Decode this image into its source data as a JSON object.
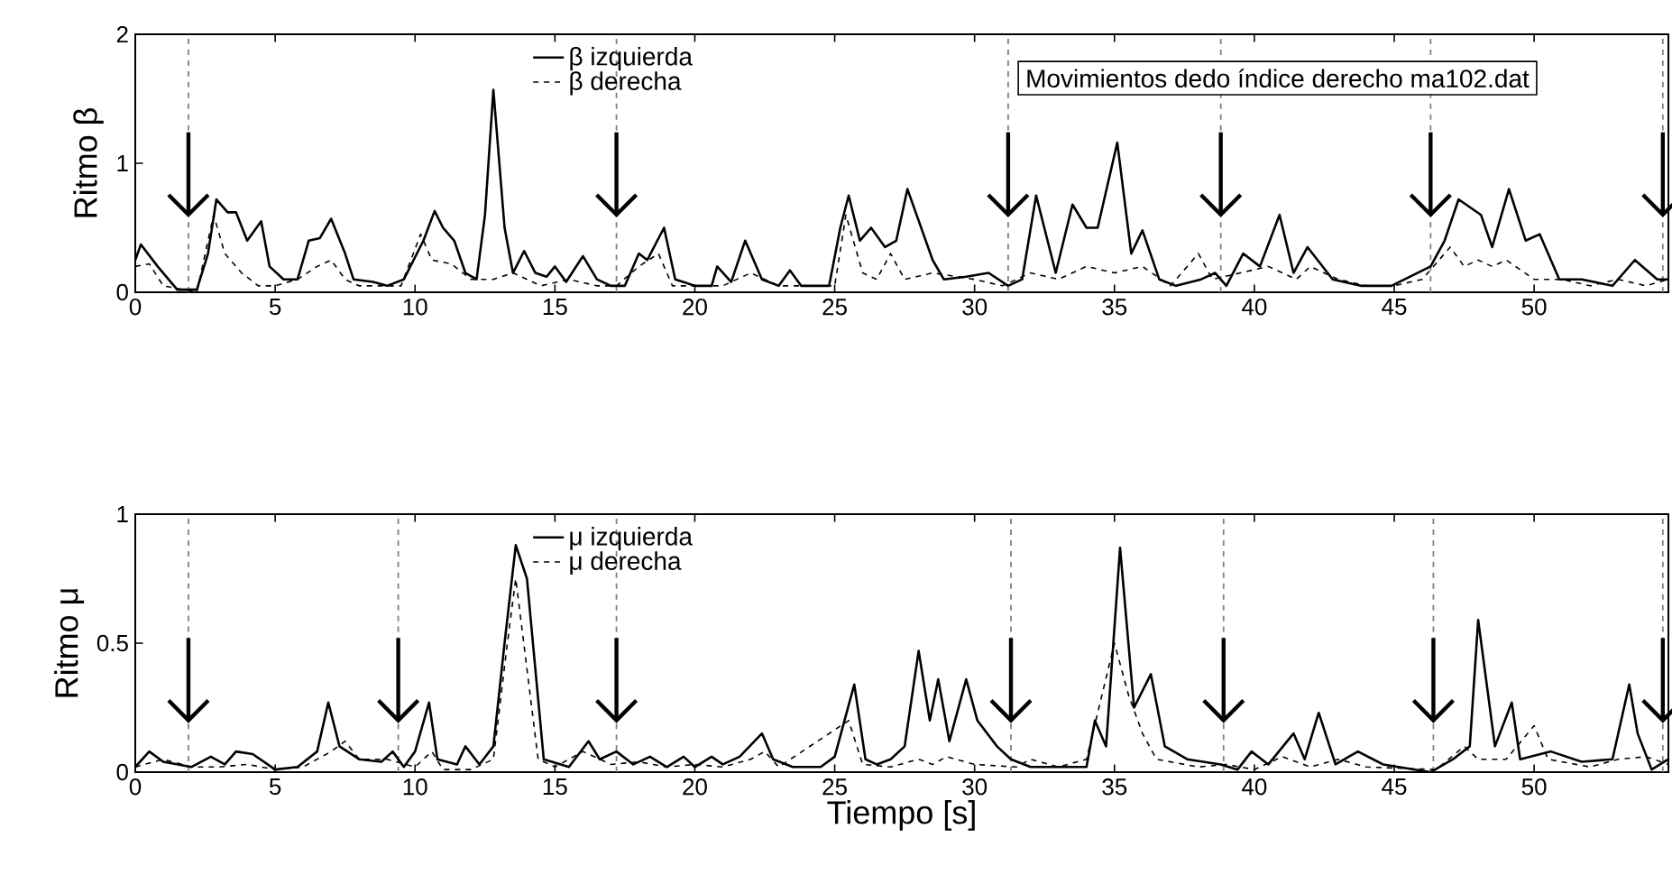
{
  "chart_data": [
    {
      "type": "line",
      "ylabel": "Ritmo β",
      "xlim": [
        0,
        54.8
      ],
      "ylim": [
        0,
        2
      ],
      "xticks": [
        0,
        5,
        10,
        15,
        20,
        25,
        30,
        35,
        40,
        45,
        50
      ],
      "yticks": [
        0,
        1,
        2
      ],
      "legend": "top",
      "annotations": [
        "Movimientos dedo índice derecho ma102.dat"
      ],
      "ref_lines": [
        {
          "axis": "x",
          "value": 1.9,
          "color": "#808080",
          "line_style": "dashed"
        },
        {
          "axis": "x",
          "value": 17.2,
          "color": "#808080",
          "line_style": "dashed"
        },
        {
          "axis": "x",
          "value": 31.2,
          "color": "#808080",
          "line_style": "dashed"
        },
        {
          "axis": "x",
          "value": 38.8,
          "color": "#808080",
          "line_style": "dashed"
        },
        {
          "axis": "x",
          "value": 46.3,
          "color": "#808080",
          "line_style": "dashed"
        },
        {
          "axis": "x",
          "value": 54.6,
          "color": "#808080",
          "line_style": "dashed"
        }
      ],
      "series": [
        {
          "name": "β izquierda",
          "color": "#000000",
          "line_style": "solid",
          "x": [
            0,
            0.2,
            0.8,
            1.5,
            2.2,
            2.6,
            2.9,
            3.3,
            3.6,
            4.0,
            4.5,
            4.8,
            5.3,
            5.8,
            6.2,
            6.6,
            7.0,
            7.5,
            7.8,
            8.5,
            9.0,
            9.6,
            10.3,
            10.7,
            11.0,
            11.4,
            11.8,
            12.2,
            12.5,
            12.8,
            13.2,
            13.5,
            13.9,
            14.3,
            14.7,
            15.0,
            15.4,
            16.0,
            16.5,
            17.0,
            17.5,
            18.0,
            18.3,
            18.9,
            19.3,
            20.0,
            20.6,
            20.8,
            21.3,
            21.8,
            22.4,
            23.0,
            23.4,
            23.8,
            24.8,
            25.2,
            25.5,
            25.9,
            26.3,
            26.8,
            27.2,
            27.6,
            28.5,
            28.9,
            29.7,
            30.5,
            31.2,
            31.7,
            32.2,
            32.9,
            33.5,
            34.0,
            34.4,
            35.1,
            35.6,
            36.0,
            36.6,
            37.2,
            38.1,
            38.6,
            39.0,
            39.6,
            40.2,
            40.9,
            41.4,
            41.9,
            42.8,
            43.8,
            44.9,
            46.3,
            46.8,
            47.3,
            48.1,
            48.5,
            49.1,
            49.7,
            50.2,
            50.9,
            51.7,
            52.8,
            53.6,
            54.4,
            54.8
          ],
          "values": [
            0.25,
            0.37,
            0.2,
            0.02,
            0.02,
            0.3,
            0.72,
            0.62,
            0.62,
            0.4,
            0.55,
            0.2,
            0.1,
            0.1,
            0.4,
            0.42,
            0.57,
            0.3,
            0.1,
            0.08,
            0.05,
            0.1,
            0.4,
            0.63,
            0.5,
            0.4,
            0.15,
            0.1,
            0.6,
            1.57,
            0.5,
            0.15,
            0.32,
            0.15,
            0.12,
            0.2,
            0.08,
            0.28,
            0.1,
            0.05,
            0.05,
            0.3,
            0.25,
            0.5,
            0.1,
            0.05,
            0.05,
            0.2,
            0.08,
            0.4,
            0.1,
            0.05,
            0.17,
            0.05,
            0.05,
            0.5,
            0.75,
            0.4,
            0.5,
            0.35,
            0.4,
            0.8,
            0.25,
            0.1,
            0.12,
            0.15,
            0.05,
            0.1,
            0.75,
            0.15,
            0.68,
            0.5,
            0.5,
            1.16,
            0.3,
            0.48,
            0.1,
            0.05,
            0.1,
            0.15,
            0.05,
            0.3,
            0.2,
            0.6,
            0.15,
            0.35,
            0.1,
            0.05,
            0.05,
            0.2,
            0.4,
            0.72,
            0.6,
            0.35,
            0.8,
            0.4,
            0.45,
            0.1,
            0.1,
            0.05,
            0.25,
            0.1,
            0.1
          ]
        },
        {
          "name": "β derecha",
          "color": "#000000",
          "line_style": "dashed",
          "x": [
            0,
            0.5,
            1.0,
            2.2,
            2.8,
            3.2,
            3.8,
            4.4,
            5.0,
            5.8,
            6.5,
            7.0,
            7.5,
            8.0,
            9.5,
            10.2,
            10.6,
            11.3,
            12.0,
            12.8,
            13.5,
            14.5,
            15.5,
            16.5,
            17.2,
            18.0,
            18.7,
            19.2,
            21.0,
            22.0,
            23.0,
            25.0,
            25.4,
            26.0,
            26.5,
            27.0,
            27.5,
            28.5,
            30.0,
            31.0,
            32.0,
            33.0,
            34.0,
            35.0,
            36.0,
            37.0,
            38.0,
            38.5,
            39.5,
            40.5,
            41.5,
            42.0,
            43.0,
            44.0,
            45.0,
            46.0,
            47.0,
            47.5,
            48.0,
            48.5,
            49.0,
            50.0,
            51.0,
            52.0,
            53.0,
            54.0,
            54.8
          ],
          "values": [
            0.2,
            0.22,
            0.05,
            0.0,
            0.6,
            0.3,
            0.15,
            0.05,
            0.05,
            0.1,
            0.2,
            0.25,
            0.1,
            0.05,
            0.05,
            0.45,
            0.25,
            0.22,
            0.1,
            0.1,
            0.15,
            0.05,
            0.1,
            0.05,
            0.05,
            0.2,
            0.3,
            0.05,
            0.05,
            0.15,
            0.05,
            0.05,
            0.6,
            0.15,
            0.1,
            0.3,
            0.1,
            0.15,
            0.1,
            0.05,
            0.15,
            0.1,
            0.2,
            0.15,
            0.2,
            0.05,
            0.3,
            0.1,
            0.15,
            0.2,
            0.1,
            0.2,
            0.1,
            0.05,
            0.05,
            0.1,
            0.35,
            0.2,
            0.25,
            0.2,
            0.25,
            0.1,
            0.1,
            0.05,
            0.1,
            0.05,
            0.1
          ]
        }
      ]
    },
    {
      "type": "line",
      "ylabel": "Ritmo μ",
      "xlabel": "Tiempo [s]",
      "xlim": [
        0,
        54.8
      ],
      "ylim": [
        0,
        1
      ],
      "xticks": [
        0,
        5,
        10,
        15,
        20,
        25,
        30,
        35,
        40,
        45,
        50
      ],
      "yticks": [
        0,
        0.5,
        1
      ],
      "legend": "top",
      "ref_lines": [
        {
          "axis": "x",
          "value": 1.9,
          "color": "#808080",
          "line_style": "dashed"
        },
        {
          "axis": "x",
          "value": 9.4,
          "color": "#808080",
          "line_style": "dashed"
        },
        {
          "axis": "x",
          "value": 17.2,
          "color": "#808080",
          "line_style": "dashed"
        },
        {
          "axis": "x",
          "value": 31.3,
          "color": "#808080",
          "line_style": "dashed"
        },
        {
          "axis": "x",
          "value": 38.9,
          "color": "#808080",
          "line_style": "dashed"
        },
        {
          "axis": "x",
          "value": 46.4,
          "color": "#808080",
          "line_style": "dashed"
        },
        {
          "axis": "x",
          "value": 54.6,
          "color": "#808080",
          "line_style": "dashed"
        }
      ],
      "series": [
        {
          "name": "μ izquierda",
          "color": "#000000",
          "line_style": "solid",
          "x": [
            0,
            0.5,
            1,
            2,
            2.7,
            3.2,
            3.6,
            4.2,
            5,
            5.8,
            6.5,
            6.9,
            7.3,
            8,
            8.8,
            9.2,
            9.6,
            10.0,
            10.5,
            10.8,
            11.5,
            11.8,
            12.3,
            12.8,
            13.2,
            13.6,
            14.0,
            14.3,
            14.6,
            15.5,
            16.2,
            16.6,
            17.2,
            17.8,
            18.4,
            19,
            19.6,
            20.0,
            20.6,
            21,
            21.6,
            22.4,
            22.8,
            23.5,
            24.5,
            25.0,
            25.7,
            26.1,
            26.5,
            27,
            27.5,
            28.0,
            28.4,
            28.7,
            29.1,
            29.7,
            30.1,
            30.8,
            31.3,
            32,
            33,
            34,
            34.3,
            34.7,
            35.2,
            35.7,
            36.3,
            36.8,
            37.6,
            38.8,
            39.4,
            39.9,
            40.5,
            41.4,
            41.8,
            42.3,
            42.9,
            43.7,
            44.6,
            46.3,
            47.1,
            47.7,
            48.0,
            48.6,
            49.2,
            49.5,
            50.6,
            51.7,
            52.8,
            53.4,
            53.7,
            54.2,
            54.8
          ],
          "values": [
            0.02,
            0.08,
            0.04,
            0.02,
            0.06,
            0.03,
            0.08,
            0.07,
            0.01,
            0.02,
            0.08,
            0.27,
            0.1,
            0.05,
            0.04,
            0.08,
            0.02,
            0.08,
            0.27,
            0.05,
            0.03,
            0.1,
            0.03,
            0.1,
            0.5,
            0.88,
            0.75,
            0.4,
            0.05,
            0.02,
            0.12,
            0.05,
            0.08,
            0.03,
            0.06,
            0.02,
            0.06,
            0.02,
            0.06,
            0.03,
            0.06,
            0.15,
            0.05,
            0.02,
            0.02,
            0.06,
            0.34,
            0.05,
            0.03,
            0.05,
            0.1,
            0.47,
            0.2,
            0.36,
            0.12,
            0.36,
            0.2,
            0.1,
            0.05,
            0.02,
            0.02,
            0.02,
            0.2,
            0.1,
            0.87,
            0.25,
            0.38,
            0.1,
            0.05,
            0.03,
            0.01,
            0.08,
            0.03,
            0.15,
            0.05,
            0.23,
            0.03,
            0.08,
            0.03,
            0.0,
            0.05,
            0.1,
            0.59,
            0.1,
            0.27,
            0.05,
            0.08,
            0.04,
            0.05,
            0.34,
            0.15,
            0.01,
            0.05
          ]
        },
        {
          "name": "μ derecha",
          "color": "#000000",
          "line_style": "dashed",
          "x": [
            0,
            1,
            2,
            3,
            4,
            5,
            6,
            7,
            7.5,
            8,
            9,
            10,
            10.6,
            11,
            12,
            12.8,
            13.3,
            13.6,
            14.0,
            14.4,
            15,
            16,
            17,
            18,
            19,
            20,
            21,
            22,
            22.5,
            23,
            25.5,
            26,
            27,
            28,
            28.5,
            29,
            30,
            31.5,
            32,
            33,
            34,
            35,
            35.5,
            36,
            36.5,
            38,
            39,
            40,
            41,
            42,
            43,
            44,
            46.5,
            47.5,
            48,
            49,
            50,
            50.5,
            52,
            53,
            54,
            54.8
          ],
          "values": [
            0.02,
            0.05,
            0.02,
            0.02,
            0.03,
            0.01,
            0.02,
            0.08,
            0.12,
            0.05,
            0.05,
            0.02,
            0.08,
            0.01,
            0.01,
            0.05,
            0.5,
            0.75,
            0.4,
            0.05,
            0.02,
            0.08,
            0.03,
            0.04,
            0.02,
            0.03,
            0.02,
            0.05,
            0.08,
            0.02,
            0.2,
            0.03,
            0.02,
            0.05,
            0.03,
            0.06,
            0.03,
            0.02,
            0.05,
            0.02,
            0.05,
            0.5,
            0.3,
            0.15,
            0.05,
            0.02,
            0.03,
            0.01,
            0.06,
            0.02,
            0.05,
            0.02,
            0.01,
            0.1,
            0.05,
            0.05,
            0.18,
            0.05,
            0.02,
            0.05,
            0.06,
            0.03
          ]
        }
      ]
    }
  ]
}
